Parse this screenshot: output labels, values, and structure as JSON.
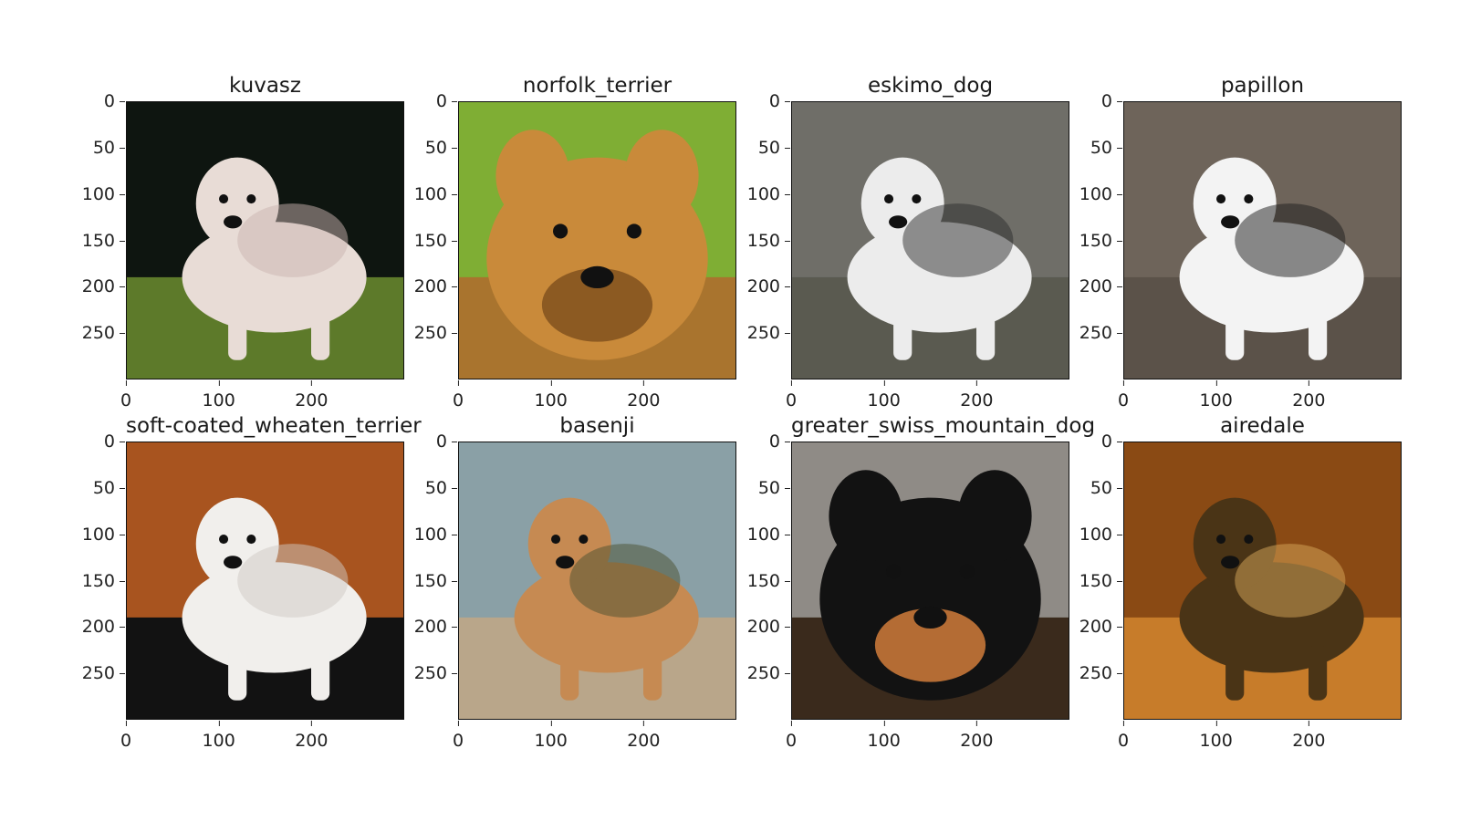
{
  "panels": [
    {
      "title": "kuvasz",
      "y_ticks": [
        "0",
        "50",
        "100",
        "150",
        "200",
        "250"
      ],
      "x_ticks": [
        "0",
        "100",
        "200"
      ],
      "colors": {
        "bg": "#0e1510",
        "ground": "#5d7a2a",
        "subject": "#e8dcd6",
        "shade": "#c9b4b0"
      }
    },
    {
      "title": "norfolk_terrier",
      "y_ticks": [
        "0",
        "50",
        "100",
        "150",
        "200",
        "250"
      ],
      "x_ticks": [
        "0",
        "100",
        "200"
      ],
      "colors": {
        "bg": "#7fae34",
        "ground": "#a9742e",
        "subject": "#c98a3a",
        "shade": "#8c5a22"
      }
    },
    {
      "title": "eskimo_dog",
      "y_ticks": [
        "0",
        "50",
        "100",
        "150",
        "200",
        "250"
      ],
      "x_ticks": [
        "0",
        "100",
        "200"
      ],
      "colors": {
        "bg": "#6f6e68",
        "ground": "#5a5a50",
        "subject": "#ececec",
        "shade": "#2b2b2b"
      }
    },
    {
      "title": "papillon",
      "y_ticks": [
        "0",
        "50",
        "100",
        "150",
        "200",
        "250"
      ],
      "x_ticks": [
        "0",
        "100",
        "200"
      ],
      "colors": {
        "bg": "#6e645a",
        "ground": "#5b5249",
        "subject": "#f3f3f3",
        "shade": "#1c1c1c"
      }
    },
    {
      "title": "soft-coated_wheaten_terrier",
      "y_ticks": [
        "0",
        "50",
        "100",
        "150",
        "200",
        "250"
      ],
      "x_ticks": [
        "0",
        "100",
        "200"
      ],
      "colors": {
        "bg": "#a8541f",
        "ground": "#121212",
        "subject": "#f1efec",
        "shade": "#cfcac4"
      }
    },
    {
      "title": "basenji",
      "y_ticks": [
        "0",
        "50",
        "100",
        "150",
        "200",
        "250"
      ],
      "x_ticks": [
        "0",
        "100",
        "200"
      ],
      "colors": {
        "bg": "#8aa0a6",
        "ground": "#b9a68a",
        "subject": "#c68a52",
        "shade": "#4a5030"
      }
    },
    {
      "title": "greater_swiss_mountain_dog",
      "y_ticks": [
        "0",
        "50",
        "100",
        "150",
        "200",
        "250"
      ],
      "x_ticks": [
        "0",
        "100",
        "200"
      ],
      "colors": {
        "bg": "#8f8b86",
        "ground": "#3a2a1c",
        "subject": "#121212",
        "shade": "#b46c34"
      }
    },
    {
      "title": "airedale",
      "y_ticks": [
        "0",
        "50",
        "100",
        "150",
        "200",
        "250"
      ],
      "x_ticks": [
        "0",
        "100",
        "200"
      ],
      "colors": {
        "bg": "#8a4a14",
        "ground": "#c77c2a",
        "subject": "#4a3416",
        "shade": "#d7a85a"
      }
    }
  ]
}
